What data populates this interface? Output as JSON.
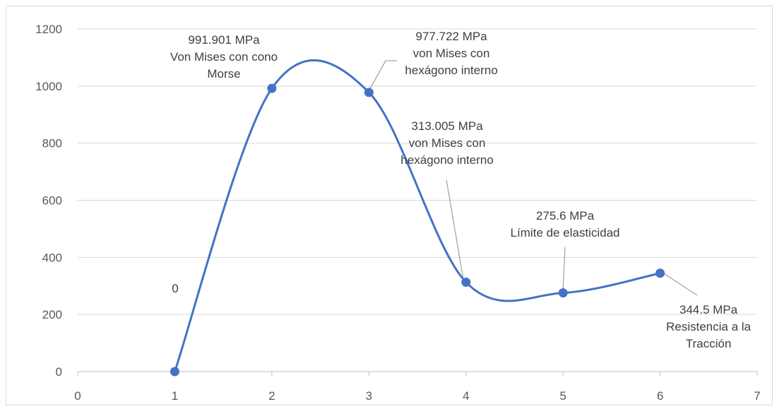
{
  "chart_data": {
    "type": "line",
    "title": "",
    "xlabel": "",
    "ylabel": "",
    "xlim": [
      0,
      7
    ],
    "ylim": [
      0,
      1200
    ],
    "x_ticks": [
      0,
      1,
      2,
      3,
      4,
      5,
      6,
      7
    ],
    "y_ticks": [
      0,
      200,
      400,
      600,
      800,
      1000,
      1200
    ],
    "grid": "horizontal",
    "legend": "none",
    "smooth": true,
    "series": [
      {
        "color": "#4472c4",
        "points": [
          {
            "x": 1,
            "y": 0
          },
          {
            "x": 2,
            "y": 991.901
          },
          {
            "x": 3,
            "y": 977.722
          },
          {
            "x": 4,
            "y": 313.005
          },
          {
            "x": 5,
            "y": 275.6
          },
          {
            "x": 6,
            "y": 344.5
          }
        ]
      }
    ],
    "data_labels": [
      {
        "lines": [
          "0"
        ]
      },
      {
        "lines": [
          "991.901 MPa",
          "Von Mises con cono",
          "Morse"
        ]
      },
      {
        "lines": [
          "977.722 MPa",
          "von Mises con",
          "hexágono interno"
        ]
      },
      {
        "lines": [
          "313.005 MPa",
          "von Mises con",
          "hexágono interno"
        ]
      },
      {
        "lines": [
          "275.6 MPa",
          "Límite de elasticidad"
        ]
      },
      {
        "lines": [
          "344.5 MPa",
          "Resistencia a la",
          "Tracción"
        ]
      }
    ]
  }
}
